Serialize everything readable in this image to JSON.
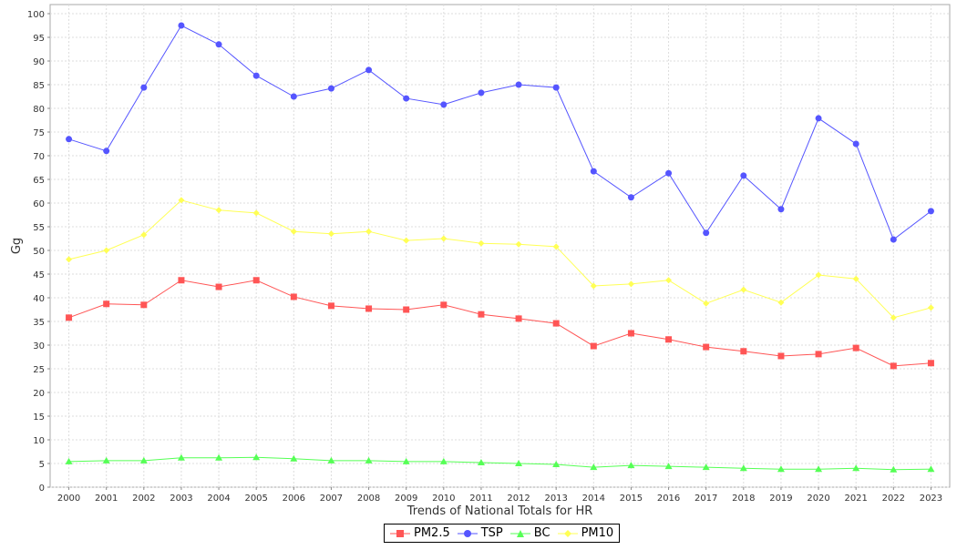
{
  "chart_data": {
    "type": "line",
    "title": "",
    "xlabel": "Trends of National Totals for HR",
    "ylabel": "Gg",
    "ylim": [
      0,
      100
    ],
    "yticks": [
      0,
      5,
      10,
      15,
      20,
      25,
      30,
      35,
      40,
      45,
      50,
      55,
      60,
      65,
      70,
      75,
      80,
      85,
      90,
      95,
      100
    ],
    "grid": true,
    "legend_position": "bottom",
    "categories": [
      "2000",
      "2001",
      "2002",
      "2003",
      "2004",
      "2005",
      "2006",
      "2007",
      "2008",
      "2009",
      "2010",
      "2011",
      "2012",
      "2013",
      "2014",
      "2015",
      "2016",
      "2017",
      "2018",
      "2019",
      "2020",
      "2021",
      "2022",
      "2023"
    ],
    "series": [
      {
        "name": "PM2.5",
        "color": "#ff5555",
        "marker": "square",
        "values": [
          35.8,
          38.7,
          38.5,
          43.7,
          42.3,
          43.7,
          40.2,
          38.3,
          37.7,
          37.5,
          38.5,
          36.5,
          35.6,
          34.6,
          29.8,
          32.5,
          31.2,
          29.6,
          28.7,
          27.7,
          28.1,
          29.4,
          25.6,
          26.2
        ]
      },
      {
        "name": "TSP",
        "color": "#5555ff",
        "marker": "circle",
        "values": [
          73.5,
          71.0,
          84.4,
          97.5,
          93.5,
          86.9,
          82.5,
          84.2,
          88.1,
          82.1,
          80.8,
          83.3,
          85.0,
          84.4,
          66.7,
          61.2,
          66.3,
          53.7,
          65.8,
          58.7,
          77.9,
          72.5,
          52.3,
          58.3
        ]
      },
      {
        "name": "BC",
        "color": "#55ff55",
        "marker": "triangle",
        "values": [
          5.4,
          5.6,
          5.6,
          6.2,
          6.2,
          6.3,
          6.0,
          5.6,
          5.6,
          5.4,
          5.4,
          5.2,
          5.0,
          4.8,
          4.2,
          4.6,
          4.4,
          4.2,
          4.0,
          3.8,
          3.8,
          4.0,
          3.7,
          3.8
        ]
      },
      {
        "name": "PM10",
        "color": "#ffff55",
        "marker": "diamond",
        "values": [
          48.1,
          50.0,
          53.3,
          60.6,
          58.5,
          57.9,
          54.0,
          53.5,
          54.0,
          52.1,
          52.5,
          51.5,
          51.3,
          50.8,
          42.5,
          42.9,
          43.7,
          38.8,
          41.7,
          39.0,
          44.8,
          44.0,
          35.8,
          37.9
        ]
      }
    ]
  }
}
